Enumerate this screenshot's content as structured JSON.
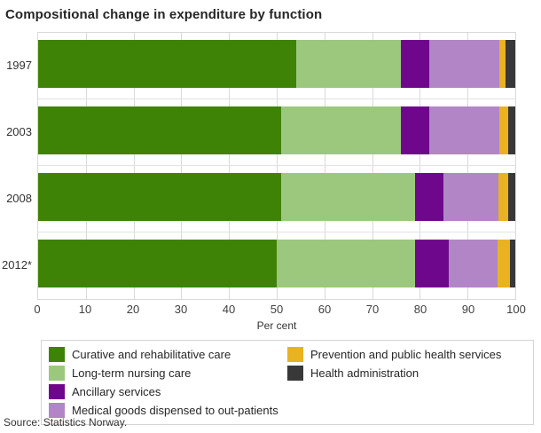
{
  "title": "Compositional change in expenditure by function",
  "source": "Source: Statistics Norway.",
  "chart_data": {
    "type": "bar",
    "orientation": "horizontal-stacked",
    "title": "Compositional change in expenditure by function",
    "categories": [
      "1997",
      "2003",
      "2008",
      "2012*"
    ],
    "series": [
      {
        "name": "Curative and rehabilitative care",
        "color": "#3e8306",
        "values": [
          54.0,
          51.0,
          51.0,
          50.0
        ]
      },
      {
        "name": "Long-term nursing care",
        "color": "#9cc87e",
        "values": [
          22.0,
          25.0,
          28.0,
          29.0
        ]
      },
      {
        "name": "Ancillary services",
        "color": "#6e078c",
        "values": [
          6.0,
          6.0,
          6.0,
          7.0
        ]
      },
      {
        "name": "Medical goods dispensed to out-patients",
        "color": "#b286c6",
        "values": [
          14.7,
          14.7,
          11.5,
          10.3
        ]
      },
      {
        "name": "Prevention and public health services",
        "color": "#e8b221",
        "values": [
          1.2,
          1.9,
          2.1,
          2.6
        ]
      },
      {
        "name": "Health administration",
        "color": "#383838",
        "values": [
          2.1,
          1.4,
          1.4,
          1.1
        ]
      }
    ],
    "xlabel": "Per cent",
    "ylabel": "",
    "xlim": [
      0,
      100
    ],
    "xticks": [
      0,
      10,
      20,
      30,
      40,
      50,
      60,
      70,
      80,
      90,
      100
    ],
    "grid": true,
    "legend_position": "bottom",
    "gridline_color": "#d9d9d9"
  }
}
